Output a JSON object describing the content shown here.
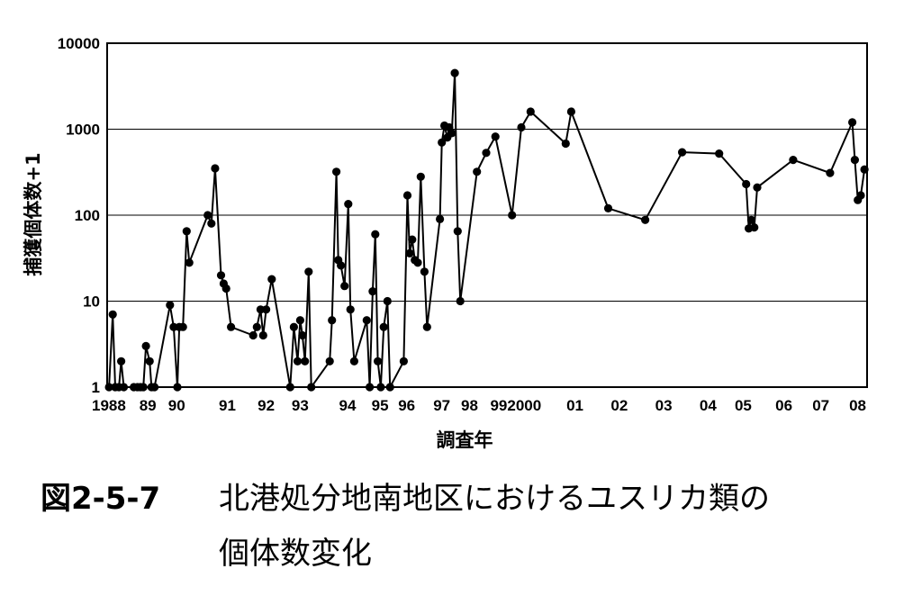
{
  "chart_data": {
    "type": "line",
    "ylabel": "捕獲個体数+1",
    "xlabel": "調査年",
    "y_scale": "log",
    "ylim": [
      1,
      10000
    ],
    "y_ticks": [
      "1",
      "10",
      "100",
      "1000",
      "10000"
    ],
    "x_ticks": [
      {
        "label": "1988",
        "year": 1988.0
      },
      {
        "label": "89",
        "year": 1989.0
      },
      {
        "label": "90",
        "year": 1989.78
      },
      {
        "label": "91",
        "year": 1991.15
      },
      {
        "label": "92",
        "year": 1992.2
      },
      {
        "label": "93",
        "year": 1993.12
      },
      {
        "label": "94",
        "year": 1994.4
      },
      {
        "label": "95",
        "year": 1995.28
      },
      {
        "label": "96",
        "year": 1996.0
      },
      {
        "label": "97",
        "year": 1996.95
      },
      {
        "label": "98",
        "year": 1997.7
      },
      {
        "label": "992000",
        "year": 1998.95
      },
      {
        "label": "01",
        "year": 2000.55
      },
      {
        "label": "02",
        "year": 2001.75
      },
      {
        "label": "03",
        "year": 2002.95
      },
      {
        "label": "04",
        "year": 2004.15
      },
      {
        "label": "05",
        "year": 2005.1
      },
      {
        "label": "06",
        "year": 2006.2
      },
      {
        "label": "07",
        "year": 2007.2
      },
      {
        "label": "08",
        "year": 2008.0
      }
    ],
    "series": [
      {
        "points": [
          [
            1987.95,
            1
          ],
          [
            1988.05,
            7
          ],
          [
            1988.12,
            1
          ],
          [
            1988.22,
            1
          ],
          [
            1988.28,
            2
          ],
          [
            1988.35,
            1
          ],
          [
            1988.62,
            1
          ],
          [
            1988.72,
            1
          ],
          [
            1988.8,
            1
          ],
          [
            1988.88,
            1
          ],
          [
            1988.95,
            3
          ],
          [
            1989.05,
            2
          ],
          [
            1989.1,
            1
          ],
          [
            1989.18,
            1
          ],
          [
            1989.6,
            9
          ],
          [
            1989.7,
            5
          ],
          [
            1989.8,
            1
          ],
          [
            1989.85,
            5
          ],
          [
            1989.95,
            5
          ],
          [
            1990.05,
            65
          ],
          [
            1990.12,
            28
          ],
          [
            1990.62,
            100
          ],
          [
            1990.72,
            80
          ],
          [
            1990.82,
            350
          ],
          [
            1990.98,
            20
          ],
          [
            1991.05,
            16
          ],
          [
            1991.12,
            14
          ],
          [
            1991.25,
            5
          ],
          [
            1991.85,
            4
          ],
          [
            1991.95,
            5
          ],
          [
            1992.05,
            8
          ],
          [
            1992.12,
            4
          ],
          [
            1992.2,
            8
          ],
          [
            1992.35,
            18
          ],
          [
            1992.85,
            1
          ],
          [
            1992.95,
            5
          ],
          [
            1993.05,
            2
          ],
          [
            1993.12,
            6
          ],
          [
            1993.18,
            4
          ],
          [
            1993.25,
            2
          ],
          [
            1993.35,
            22
          ],
          [
            1993.42,
            1
          ],
          [
            1993.92,
            2
          ],
          [
            1993.98,
            6
          ],
          [
            1994.1,
            320
          ],
          [
            1994.15,
            30
          ],
          [
            1994.22,
            26
          ],
          [
            1994.32,
            15
          ],
          [
            1994.42,
            135
          ],
          [
            1994.48,
            8
          ],
          [
            1994.58,
            2
          ],
          [
            1994.92,
            6
          ],
          [
            1995.0,
            1
          ],
          [
            1995.08,
            13
          ],
          [
            1995.15,
            60
          ],
          [
            1995.22,
            2
          ],
          [
            1995.3,
            1
          ],
          [
            1995.38,
            5
          ],
          [
            1995.48,
            10
          ],
          [
            1995.55,
            1
          ],
          [
            1995.92,
            2
          ],
          [
            1996.02,
            170
          ],
          [
            1996.08,
            36
          ],
          [
            1996.15,
            52
          ],
          [
            1996.22,
            30
          ],
          [
            1996.3,
            28
          ],
          [
            1996.38,
            280
          ],
          [
            1996.48,
            22
          ],
          [
            1996.55,
            5
          ],
          [
            1996.9,
            90
          ],
          [
            1996.95,
            700
          ],
          [
            1997.02,
            1100
          ],
          [
            1997.1,
            800
          ],
          [
            1997.15,
            1050
          ],
          [
            1997.22,
            900
          ],
          [
            1997.3,
            4500
          ],
          [
            1997.38,
            65
          ],
          [
            1997.45,
            10
          ],
          [
            1997.9,
            320
          ],
          [
            1998.15,
            530
          ],
          [
            1998.4,
            820
          ],
          [
            1998.85,
            100
          ],
          [
            1999.1,
            1050
          ],
          [
            1999.35,
            1600
          ],
          [
            2000.3,
            680
          ],
          [
            2000.45,
            1600
          ],
          [
            2001.45,
            120
          ],
          [
            2002.45,
            88
          ],
          [
            2003.45,
            540
          ],
          [
            2004.45,
            520
          ],
          [
            2005.18,
            230
          ],
          [
            2005.25,
            70
          ],
          [
            2005.32,
            88
          ],
          [
            2005.4,
            72
          ],
          [
            2005.48,
            210
          ],
          [
            2006.45,
            440
          ],
          [
            2007.45,
            310
          ],
          [
            2008.05,
            1200
          ],
          [
            2008.12,
            440
          ],
          [
            2008.2,
            150
          ],
          [
            2008.28,
            170
          ],
          [
            2008.38,
            340
          ]
        ]
      }
    ]
  },
  "caption": {
    "figure_number": "図2-5-7",
    "title_line1": "北港処分地南地区におけるユスリカ類の",
    "title_line2": "個体数変化"
  }
}
